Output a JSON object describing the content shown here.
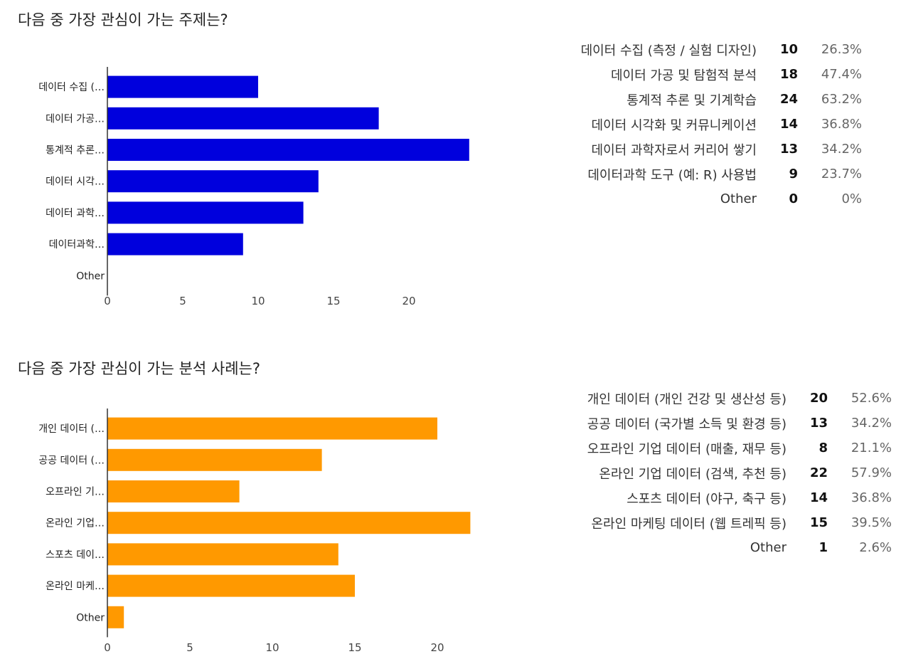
{
  "sections": [
    {
      "question": "다음 중 가장 관심이 가는 주제는?",
      "color": "#0000dd",
      "chart_data": {
        "type": "bar",
        "orientation": "horizontal",
        "categories": [
          "데이터 수집 (…",
          "데이터 가공…",
          "통계적 추론…",
          "데이터 시각…",
          "데이터 과학…",
          "데이터과학…",
          "Other"
        ],
        "values": [
          10,
          18,
          24,
          14,
          13,
          9,
          0
        ],
        "xticks": [
          "0",
          "5",
          "10",
          "15",
          "20"
        ],
        "xlim": [
          0,
          24
        ],
        "grid": false,
        "title": "다음 중 가장 관심이 가는 주제는?",
        "xlabel": "",
        "ylabel": ""
      },
      "legend": [
        {
          "label": "데이터 수집 (측정 / 실험 디자인)",
          "count": "10",
          "pct": "26.3%"
        },
        {
          "label": "데이터 가공 및 탐험적 분석",
          "count": "18",
          "pct": "47.4%"
        },
        {
          "label": "통계적 추론 및 기계학습",
          "count": "24",
          "pct": "63.2%"
        },
        {
          "label": "데이터 시각화 및 커뮤니케이션",
          "count": "14",
          "pct": "36.8%"
        },
        {
          "label": "데이터 과학자로서 커리어 쌓기",
          "count": "13",
          "pct": "34.2%"
        },
        {
          "label": "데이터과학 도구 (예: R) 사용법",
          "count": "9",
          "pct": "23.7%"
        },
        {
          "label": "Other",
          "count": "0",
          "pct": "0%"
        }
      ]
    },
    {
      "question": "다음 중 가장 관심이 가는 분석 사례는?",
      "color": "#ff9900",
      "chart_data": {
        "type": "bar",
        "orientation": "horizontal",
        "categories": [
          "개인 데이터 (…",
          "공공 데이터 (…",
          "오프라인 기…",
          "온라인 기업…",
          "스포츠 데이…",
          "온라인 마케…",
          "Other"
        ],
        "values": [
          20,
          13,
          8,
          22,
          14,
          15,
          1
        ],
        "xticks": [
          "0",
          "5",
          "10",
          "15",
          "20"
        ],
        "xlim": [
          0,
          22
        ],
        "grid": false,
        "title": "다음 중 가장 관심이 가는 분석 사례는?",
        "xlabel": "",
        "ylabel": ""
      },
      "legend": [
        {
          "label": "개인 데이터 (개인 건강 및 생산성 등)",
          "count": "20",
          "pct": "52.6%"
        },
        {
          "label": "공공 데이터 (국가별 소득 및 환경 등)",
          "count": "13",
          "pct": "34.2%"
        },
        {
          "label": "오프라인 기업 데이터 (매출, 재무 등)",
          "count": "8",
          "pct": "21.1%"
        },
        {
          "label": "온라인 기업 데이터 (검색, 추천 등)",
          "count": "22",
          "pct": "57.9%"
        },
        {
          "label": "스포츠 데이터 (야구, 축구 등)",
          "count": "14",
          "pct": "36.8%"
        },
        {
          "label": "온라인 마케팅 데이터 (웹 트레픽 등)",
          "count": "15",
          "pct": "39.5%"
        },
        {
          "label": "Other",
          "count": "1",
          "pct": "2.6%"
        }
      ]
    }
  ]
}
